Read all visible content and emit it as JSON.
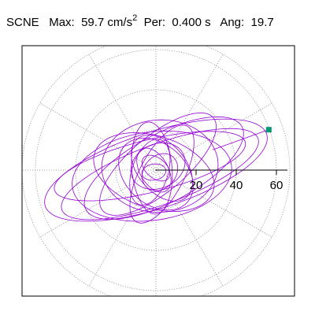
{
  "header": {
    "station": "SCNE",
    "max_label": "Max:",
    "max_value": "59.7 cm/s",
    "max_unit_exp": "2",
    "period_label": "Per:",
    "period_value": "0.400 s",
    "angle_label": "Ang:",
    "angle_value": "19.7"
  },
  "colors": {
    "trace": "#9400D3",
    "marker": "#009A74",
    "grid": "#808080",
    "axis": "#000000",
    "frame": "#000000"
  },
  "chart_data": {
    "type": "polar-orbit",
    "title": "SCNE  Max: 59.7 cm/s2  Per: 0.400 s  Ang: 19.7",
    "r_ticks": [
      20,
      40,
      60
    ],
    "r_max": 60,
    "angular_grid_deg": 30,
    "grid": true,
    "max_point": {
      "amplitude": 59.7,
      "angle_deg": 19.7
    },
    "trajectory_loops": [
      {
        "a": 52,
        "b": 15,
        "rot_deg": 20,
        "cx": 2,
        "cy": -2
      },
      {
        "a": 58,
        "b": 19,
        "rot_deg": 18,
        "cx": 0,
        "cy": 0
      },
      {
        "a": 49,
        "b": 13,
        "rot_deg": 14,
        "cx": -3,
        "cy": 2
      },
      {
        "a": 44,
        "b": 17,
        "rot_deg": 28,
        "cx": 4,
        "cy": 1
      },
      {
        "a": 40,
        "b": 22,
        "rot_deg": 8,
        "cx": -2,
        "cy": -3
      },
      {
        "a": 36,
        "b": 14,
        "rot_deg": 40,
        "cx": 1,
        "cy": 3
      },
      {
        "a": 31,
        "b": 18,
        "rot_deg": -18,
        "cx": -1,
        "cy": -1
      },
      {
        "a": 27,
        "b": 11,
        "rot_deg": 62,
        "cx": 3,
        "cy": -2
      },
      {
        "a": 29,
        "b": 23,
        "rot_deg": 3,
        "cx": 2,
        "cy": 2
      },
      {
        "a": 23,
        "b": 10,
        "rot_deg": 95,
        "cx": -2,
        "cy": 1
      },
      {
        "a": 21,
        "b": 15,
        "rot_deg": -42,
        "cx": 0,
        "cy": -2
      },
      {
        "a": 19,
        "b": 12,
        "rot_deg": 130,
        "cx": 3,
        "cy": 1
      },
      {
        "a": 17,
        "b": 9,
        "rot_deg": 72,
        "cx": -3,
        "cy": -1
      },
      {
        "a": 14,
        "b": 11,
        "rot_deg": 25,
        "cx": 1,
        "cy": 2
      },
      {
        "a": 12,
        "b": 7,
        "rot_deg": -60,
        "cx": -1,
        "cy": 0
      },
      {
        "a": 10,
        "b": 8,
        "rot_deg": 50,
        "cx": 2,
        "cy": -1
      },
      {
        "a": 8,
        "b": 5,
        "rot_deg": 140,
        "cx": 0,
        "cy": 1
      },
      {
        "a": 6,
        "b": 4,
        "rot_deg": 10,
        "cx": -1,
        "cy": -1
      }
    ]
  }
}
